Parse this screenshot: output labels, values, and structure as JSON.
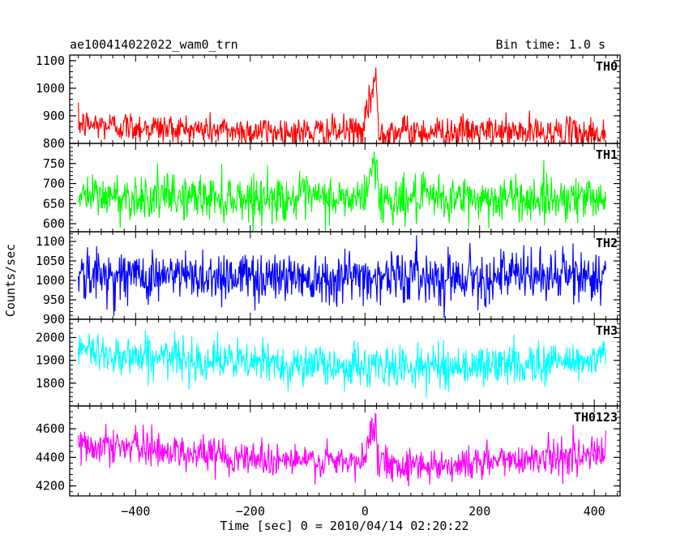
{
  "title_left": "ae100414022022_wam0_trn",
  "title_right": "Bin time: 1.0 s",
  "chart_data": {
    "type": "line",
    "title": "ae100414022022_wam0_trn",
    "subtitle": "Bin time: 1.0 s",
    "xlabel": "Time [sec] 0 = 2010/04/14 02:20:22",
    "ylabel": "Counts/sec",
    "xlim": [
      -515,
      445
    ],
    "x_ticks": [
      -400,
      -200,
      0,
      200,
      400
    ],
    "x_tick_labels": [
      "−400",
      "−200",
      "0",
      "200",
      "400"
    ],
    "x_range": [
      -500,
      420
    ],
    "grid": false,
    "legend": "none",
    "panels": [
      {
        "name": "TH0",
        "color": "#ff0000",
        "ylim": [
          800,
          1120
        ],
        "y_ticks": [
          800,
          900,
          1000,
          1100
        ],
        "y_tick_labels": [
          "800",
          "900",
          "1000",
          "1100"
        ],
        "baseline": [
          [
            -500,
            870
          ],
          [
            -400,
            860
          ],
          [
            -300,
            850
          ],
          [
            -200,
            845
          ],
          [
            -100,
            840
          ],
          [
            -10,
            845
          ],
          [
            300,
            840
          ],
          [
            420,
            835
          ]
        ],
        "noise": 28,
        "burst": {
          "start": -2,
          "peak": 18,
          "end": 24,
          "amp": 200
        }
      },
      {
        "name": "TH1",
        "color": "#00ff00",
        "ylim": [
          580,
          800
        ],
        "y_ticks": [
          600,
          650,
          700,
          750
        ],
        "y_tick_labels": [
          "600",
          "650",
          "700",
          "750"
        ],
        "baseline": [
          [
            -500,
            668
          ],
          [
            -200,
            665
          ],
          [
            0,
            660
          ],
          [
            300,
            663
          ],
          [
            420,
            668
          ]
        ],
        "noise": 28,
        "burst": {
          "start": -2,
          "peak": 18,
          "end": 24,
          "amp": 110
        }
      },
      {
        "name": "TH2",
        "color": "#0000ff",
        "ylim": [
          900,
          1125
        ],
        "y_ticks": [
          900,
          950,
          1000,
          1050,
          1100
        ],
        "y_tick_labels": [
          "900",
          "950",
          "1000",
          "1050",
          "1100"
        ],
        "baseline": [
          [
            -500,
            1012
          ],
          [
            0,
            1010
          ],
          [
            420,
            1012
          ]
        ],
        "noise": 33,
        "burst": null
      },
      {
        "name": "TH3",
        "color": "#00ffff",
        "ylim": [
          1700,
          2080
        ],
        "y_ticks": [
          1800,
          1900,
          2000
        ],
        "y_tick_labels": [
          "1800",
          "1900",
          "2000"
        ],
        "baseline": [
          [
            -500,
            1940
          ],
          [
            -400,
            1920
          ],
          [
            -200,
            1890
          ],
          [
            0,
            1870
          ],
          [
            200,
            1875
          ],
          [
            420,
            1905
          ]
        ],
        "noise": 45,
        "burst": null
      },
      {
        "name": "TH0123",
        "color": "#ff00ff",
        "ylim": [
          4130,
          4760
        ],
        "y_ticks": [
          4200,
          4400,
          4600
        ],
        "y_tick_labels": [
          "4200",
          "4400",
          "4600"
        ],
        "baseline": [
          [
            -500,
            4500
          ],
          [
            -400,
            4470
          ],
          [
            -300,
            4430
          ],
          [
            -200,
            4400
          ],
          [
            -100,
            4370
          ],
          [
            0,
            4360
          ],
          [
            150,
            4345
          ],
          [
            300,
            4400
          ],
          [
            420,
            4420
          ]
        ],
        "noise": 60,
        "burst": {
          "start": -2,
          "peak": 18,
          "end": 24,
          "amp": 350
        }
      }
    ]
  }
}
